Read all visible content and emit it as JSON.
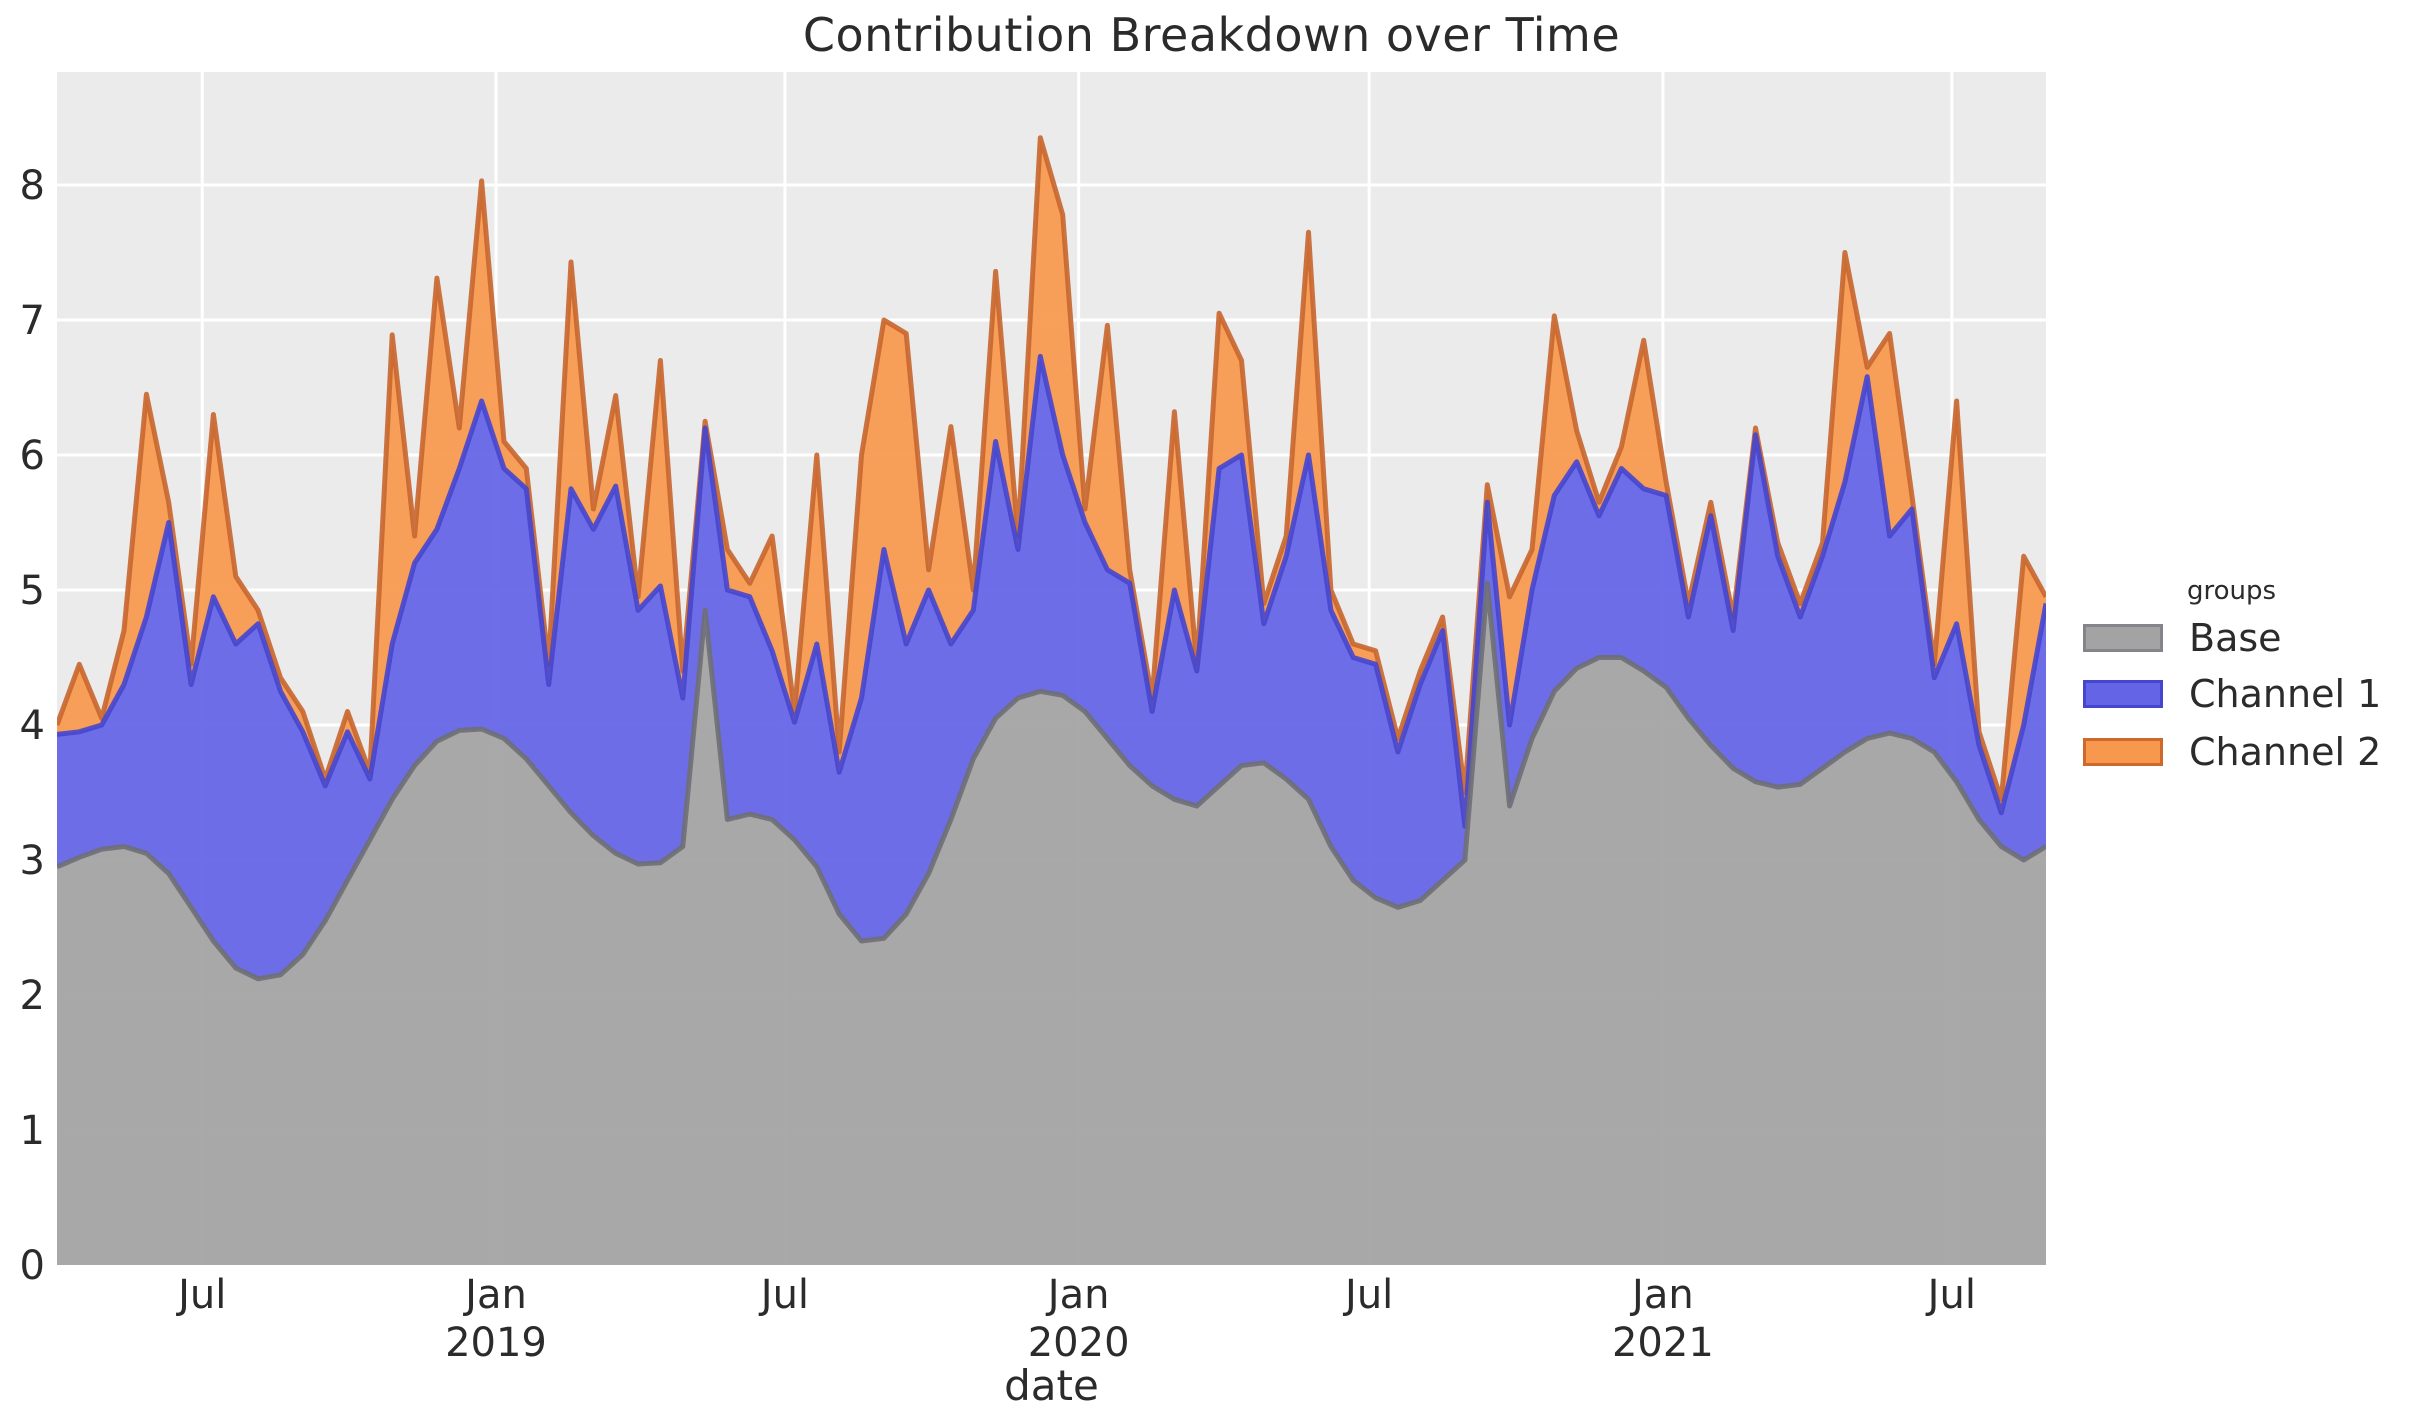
{
  "figure": {
    "title": "Contribution Breakdown over Time"
  },
  "axes": {
    "x_label": "date",
    "y_ticks": [
      "0",
      "1",
      "2",
      "3",
      "4",
      "5",
      "6",
      "7",
      "8"
    ],
    "x_ticks": [
      {
        "date": "2018-07-01",
        "label": "Jul",
        "year": ""
      },
      {
        "date": "2019-01-01",
        "label": "Jan",
        "year": "2019"
      },
      {
        "date": "2019-07-01",
        "label": "Jul",
        "year": ""
      },
      {
        "date": "2020-01-01",
        "label": "Jan",
        "year": "2020"
      },
      {
        "date": "2020-07-01",
        "label": "Jul",
        "year": ""
      },
      {
        "date": "2021-01-01",
        "label": "Jan",
        "year": "2021"
      },
      {
        "date": "2021-07-01",
        "label": "Jul",
        "year": ""
      }
    ]
  },
  "legend": {
    "title": "groups",
    "items": [
      {
        "label": "Base",
        "fill": "#a3a3a3",
        "edge": "#84848a"
      },
      {
        "label": "Channel 1",
        "fill": "#6364e6",
        "edge": "#4545cf"
      },
      {
        "label": "Channel 2",
        "fill": "#f8984e",
        "edge": "#cd6a2b"
      }
    ]
  },
  "colors": {
    "figure_bg": "#ffffff",
    "plot_bg": "#ebebeb",
    "gridline": "#ffffff",
    "text": "#2b2b2b",
    "base_fill": "#a3a3a3",
    "base_edge": "#6e6e76",
    "ch1_fill": "#6364e6",
    "ch1_edge": "#4545cf",
    "ch2_fill": "#f8984e",
    "ch2_edge": "#c8662d"
  },
  "chart_data": {
    "type": "area",
    "stacked": true,
    "title": "Contribution Breakdown over Time",
    "xlabel": "date",
    "ylabel": "",
    "legend_title": "groups",
    "legend_position": "right",
    "grid": true,
    "ylim": [
      0,
      8.84
    ],
    "x_range": [
      "2018-04-01",
      "2021-08-29"
    ],
    "x": [
      "2018-04-01",
      "2018-04-15",
      "2018-04-29",
      "2018-05-13",
      "2018-05-27",
      "2018-06-10",
      "2018-06-24",
      "2018-07-08",
      "2018-07-22",
      "2018-08-05",
      "2018-08-19",
      "2018-09-02",
      "2018-09-16",
      "2018-09-30",
      "2018-10-14",
      "2018-10-28",
      "2018-11-11",
      "2018-11-25",
      "2018-12-09",
      "2018-12-23",
      "2019-01-06",
      "2019-01-20",
      "2019-02-03",
      "2019-02-17",
      "2019-03-03",
      "2019-03-17",
      "2019-03-31",
      "2019-04-14",
      "2019-04-28",
      "2019-05-12",
      "2019-05-26",
      "2019-06-09",
      "2019-06-23",
      "2019-07-07",
      "2019-07-21",
      "2019-08-04",
      "2019-08-18",
      "2019-09-01",
      "2019-09-15",
      "2019-09-29",
      "2019-10-13",
      "2019-10-27",
      "2019-11-10",
      "2019-11-24",
      "2019-12-08",
      "2019-12-22",
      "2020-01-05",
      "2020-01-19",
      "2020-02-02",
      "2020-02-16",
      "2020-03-01",
      "2020-03-15",
      "2020-03-29",
      "2020-04-12",
      "2020-04-26",
      "2020-05-10",
      "2020-05-24",
      "2020-06-07",
      "2020-06-21",
      "2020-07-05",
      "2020-07-19",
      "2020-08-02",
      "2020-08-16",
      "2020-08-30",
      "2020-09-13",
      "2020-09-27",
      "2020-10-11",
      "2020-10-25",
      "2020-11-08",
      "2020-11-22",
      "2020-12-06",
      "2020-12-20",
      "2021-01-03",
      "2021-01-17",
      "2021-01-31",
      "2021-02-14",
      "2021-02-28",
      "2021-03-14",
      "2021-03-28",
      "2021-04-11",
      "2021-04-25",
      "2021-05-09",
      "2021-05-23",
      "2021-06-06",
      "2021-06-20",
      "2021-07-04",
      "2021-07-18",
      "2021-08-01",
      "2021-08-15",
      "2021-08-29"
    ],
    "series": [
      {
        "name": "Base",
        "values": [
          2.95,
          3.02,
          3.08,
          3.1,
          3.05,
          2.9,
          2.65,
          2.4,
          2.2,
          2.12,
          2.15,
          2.3,
          2.55,
          2.85,
          3.15,
          3.45,
          3.7,
          3.88,
          3.96,
          3.97,
          3.9,
          3.75,
          3.55,
          3.35,
          3.18,
          3.05,
          2.97,
          2.98,
          3.1,
          4.85,
          3.3,
          3.34,
          3.3,
          3.15,
          2.95,
          2.6,
          2.4,
          2.42,
          2.6,
          2.9,
          3.3,
          3.75,
          4.05,
          4.2,
          4.25,
          4.22,
          4.1,
          3.9,
          3.7,
          3.55,
          3.45,
          3.4,
          3.55,
          3.7,
          3.72,
          3.6,
          3.45,
          3.1,
          2.85,
          2.72,
          2.65,
          2.7,
          2.85,
          3.0,
          5.05,
          3.4,
          3.9,
          4.25,
          4.42,
          4.5,
          4.5,
          4.4,
          4.28,
          4.05,
          3.85,
          3.68,
          3.58,
          3.54,
          3.56,
          3.68,
          3.8,
          3.9,
          3.94,
          3.9,
          3.8,
          3.58,
          3.3,
          3.1,
          3.0,
          3.1
        ]
      },
      {
        "name": "Channel 1",
        "values": [
          0.98,
          0.93,
          0.92,
          1.2,
          1.75,
          2.6,
          1.65,
          2.55,
          2.4,
          2.63,
          2.1,
          1.65,
          1.0,
          1.1,
          0.45,
          1.15,
          1.5,
          1.57,
          1.94,
          2.43,
          2.0,
          2.0,
          0.75,
          2.4,
          2.27,
          2.72,
          1.88,
          2.05,
          1.1,
          1.35,
          1.7,
          1.61,
          1.25,
          0.87,
          1.65,
          1.05,
          1.8,
          2.88,
          2.0,
          2.1,
          1.3,
          1.1,
          2.05,
          1.1,
          2.48,
          1.78,
          1.4,
          1.25,
          1.35,
          0.55,
          1.55,
          1.0,
          2.35,
          2.3,
          1.03,
          1.65,
          2.55,
          1.75,
          1.65,
          1.73,
          1.15,
          1.6,
          1.85,
          0.25,
          0.6,
          0.6,
          1.1,
          1.45,
          1.53,
          1.05,
          1.4,
          1.35,
          1.42,
          0.75,
          1.7,
          1.02,
          2.57,
          1.71,
          1.24,
          1.57,
          2.0,
          2.68,
          1.46,
          1.7,
          0.55,
          1.17,
          0.55,
          0.25,
          1.0,
          1.8
        ]
      },
      {
        "name": "Channel 2",
        "values": [
          0.07,
          0.5,
          0.05,
          0.4,
          1.65,
          0.15,
          0.15,
          1.35,
          0.5,
          0.1,
          0.1,
          0.15,
          0.05,
          0.15,
          0.05,
          2.29,
          0.2,
          1.86,
          0.3,
          1.63,
          0.2,
          0.15,
          0.15,
          1.68,
          0.15,
          0.67,
          0.1,
          1.67,
          0.2,
          0.05,
          0.3,
          0.1,
          0.85,
          0.08,
          1.4,
          0.15,
          1.8,
          1.7,
          2.3,
          0.15,
          1.61,
          0.15,
          1.26,
          0.1,
          1.62,
          1.78,
          0.1,
          1.81,
          0.1,
          0.1,
          1.32,
          0.05,
          1.15,
          0.7,
          0.15,
          0.15,
          1.65,
          0.15,
          0.1,
          0.1,
          0.1,
          0.1,
          0.1,
          0.25,
          0.13,
          0.95,
          0.3,
          1.33,
          0.23,
          0.1,
          0.16,
          1.1,
          0.1,
          0.1,
          0.1,
          0.1,
          0.05,
          0.1,
          0.1,
          0.1,
          1.7,
          0.07,
          1.5,
          0.1,
          0.1,
          1.65,
          0.1,
          0.1,
          1.25,
          0.05
        ]
      }
    ]
  }
}
